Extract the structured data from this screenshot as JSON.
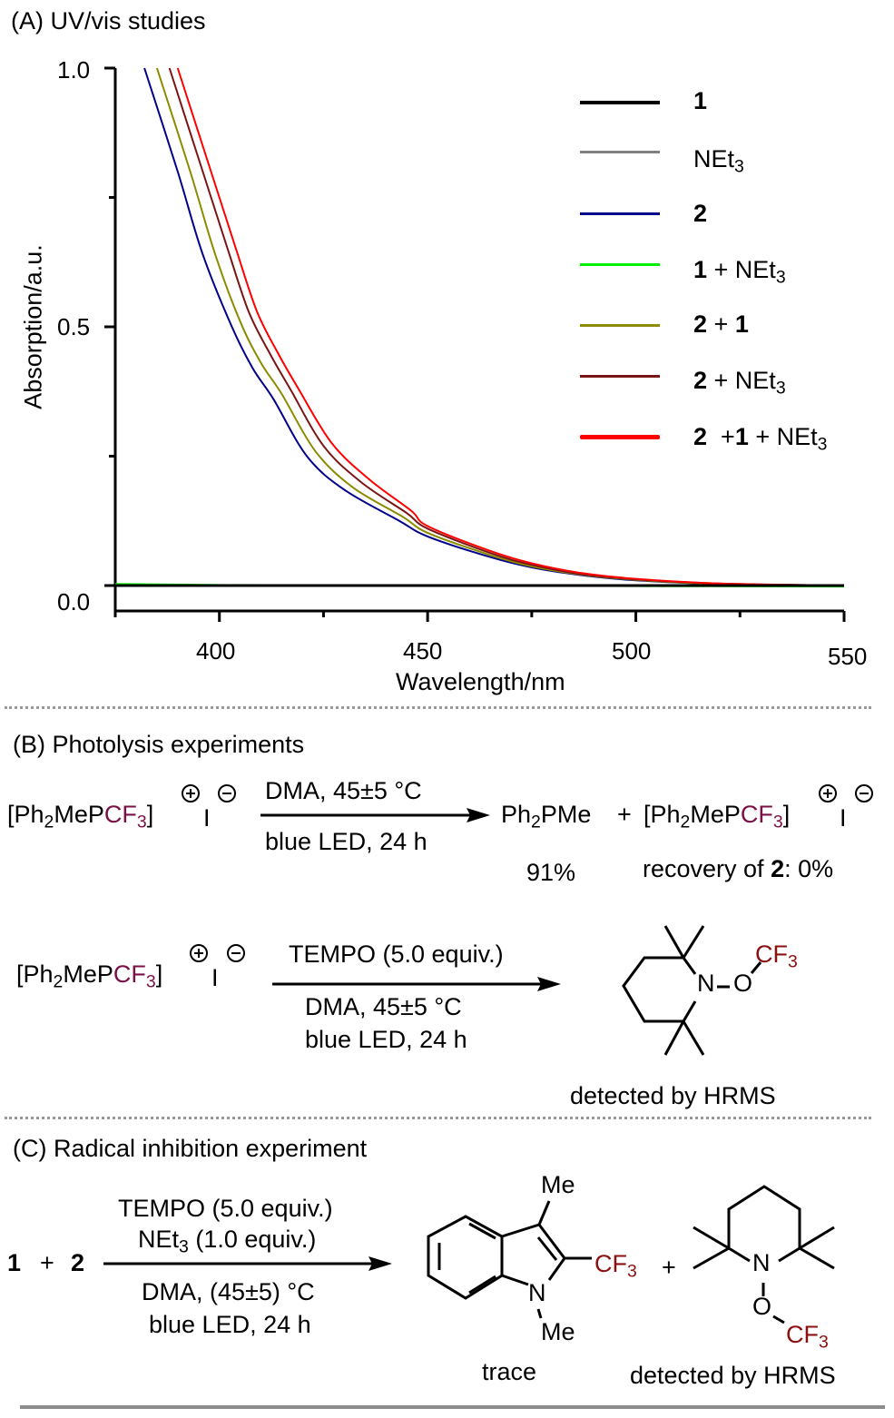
{
  "sectionA": {
    "title": "(A) UV/vis studies"
  },
  "chart_data": {
    "type": "line",
    "title": "(A) UV/vis studies",
    "xlabel": "Wavelength/nm",
    "ylabel": "Absorption/a.u.",
    "xlim": [
      375,
      550
    ],
    "ylim": [
      0.0,
      1.0
    ],
    "xticks": [
      "400",
      "450",
      "500",
      "550"
    ],
    "yticks": [
      "0.0",
      "0.5",
      "1.0"
    ],
    "legend_position": "top-right",
    "grid": false,
    "series": [
      {
        "name": "1",
        "legend_bold": "1",
        "legend_rest": "",
        "color": "#000000",
        "x": [
          375,
          400,
          450,
          500,
          550
        ],
        "y": [
          0.0,
          0.0,
          0.0,
          0.0,
          0.0
        ]
      },
      {
        "name": "NEt3",
        "legend_bold": "",
        "legend_rest": "NEt3",
        "color": "#808080",
        "x": [
          375,
          400,
          450,
          500,
          550
        ],
        "y": [
          0.0,
          0.0,
          0.0,
          0.0,
          0.0
        ]
      },
      {
        "name": "2",
        "legend_bold": "2",
        "legend_rest": "",
        "color": "#00008b",
        "x": [
          382,
          390,
          396,
          403,
          408,
          413,
          421,
          430,
          443,
          450,
          465,
          475,
          487,
          500,
          520,
          550
        ],
        "y": [
          1.0,
          0.8,
          0.64,
          0.5,
          0.42,
          0.36,
          0.25,
          0.185,
          0.126,
          0.095,
          0.055,
          0.035,
          0.02,
          0.01,
          0.003,
          0.0
        ]
      },
      {
        "name": "1 + NEt3",
        "legend_bold": "1",
        "legend_rest": " + NEt3",
        "color": "#00ee00",
        "x": [
          375,
          400,
          450,
          500,
          550
        ],
        "y": [
          0.003,
          0.001,
          0.0,
          -0.001,
          -0.002
        ]
      },
      {
        "name": "2 + 1",
        "legend_bold": "2",
        "legend_rest": " + 1",
        "color": "#8b8b00",
        "x": [
          385,
          393,
          399,
          405,
          410,
          415,
          423,
          432,
          444,
          450,
          465,
          475,
          487,
          500,
          520,
          550
        ],
        "y": [
          1.0,
          0.8,
          0.64,
          0.51,
          0.43,
          0.37,
          0.26,
          0.19,
          0.133,
          0.102,
          0.059,
          0.037,
          0.021,
          0.011,
          0.003,
          0.0
        ]
      },
      {
        "name": "2 + NEt3",
        "legend_bold": "2",
        "legend_rest": " + NEt3",
        "color": "#7b1414",
        "x": [
          388,
          396,
          402,
          407,
          412,
          417,
          425,
          434,
          445,
          450,
          465,
          475,
          487,
          500,
          520,
          550
        ],
        "y": [
          1.0,
          0.8,
          0.65,
          0.53,
          0.45,
          0.38,
          0.27,
          0.2,
          0.14,
          0.11,
          0.063,
          0.04,
          0.022,
          0.012,
          0.004,
          0.0
        ]
      },
      {
        "name": "2 +1 + NEt3",
        "legend_bold": "2",
        "legend_mid": "  +",
        "legend_bold2": "1",
        "legend_rest": " + NEt3",
        "color": "#ff0000",
        "x": [
          390,
          398,
          404,
          409,
          414,
          419,
          427,
          436,
          446,
          450,
          465,
          475,
          487,
          500,
          520,
          550
        ],
        "y": [
          1.0,
          0.8,
          0.65,
          0.53,
          0.45,
          0.38,
          0.275,
          0.205,
          0.145,
          0.115,
          0.067,
          0.043,
          0.024,
          0.013,
          0.004,
          0.0
        ]
      }
    ]
  },
  "legend": {
    "items": [
      {
        "bold": "1",
        "text": "",
        "sub": ""
      },
      {
        "bold": "",
        "text": "NEt",
        "sub": "3"
      },
      {
        "bold": "2",
        "text": "",
        "sub": ""
      },
      {
        "bold": "1",
        "text": " + NEt",
        "sub": "3"
      },
      {
        "bold": "2",
        "text": " + ",
        "bold2": "1",
        "sub": ""
      },
      {
        "bold": "2",
        "text": " + NEt",
        "sub": "3"
      },
      {
        "bold": "2",
        "text": "  +",
        "bold2": "1",
        "text2": " + NEt",
        "sub": "3"
      }
    ]
  },
  "sectionB": {
    "title": "(B) Photolysis experiments",
    "salt": {
      "open": "[Ph",
      "sub2": "2",
      "mid": "MeP",
      "cf": "CF",
      "sub3": "3",
      "close": "]",
      "anion": "I"
    },
    "rxn1": {
      "above": "DMA, 45±5 °C",
      "below": "blue LED, 24 h",
      "product1": {
        "a": "Ph",
        "sub": "2",
        "b": "PMe"
      },
      "plus": "+",
      "yield1": "91%",
      "recovery_pre": "recovery of ",
      "recovery_bold": "2",
      "recovery_post": ": 0%"
    },
    "rxn2": {
      "above": "TEMPO (5.0 equiv.)",
      "below1": "DMA, 45±5 °C",
      "below2": "blue LED, 24 h",
      "atom_N": "N",
      "atom_O": "O",
      "cf3": {
        "a": "CF",
        "sub": "3"
      },
      "note": "detected by HRMS"
    }
  },
  "sectionC": {
    "title": "(C) Radical inhibition experiment",
    "reactant1": "1",
    "plus": "+",
    "reactant2": "2",
    "above1": "TEMPO (5.0 equiv.)",
    "above2_a": "NEt",
    "above2_sub": "3",
    "above2_b": " (1.0 equiv.)",
    "below1": "DMA, (45±5) °C",
    "below2": "blue LED, 24 h",
    "indole": {
      "me_top": "Me",
      "me_bottom": "Me",
      "atom_N": "N",
      "cf3": "CF",
      "cf3_sub": "3",
      "note": "trace"
    },
    "plus2": "+",
    "tempo": {
      "atom_N": "N",
      "atom_O": "O",
      "cf3": "CF",
      "cf3_sub": "3",
      "note": "detected by HRMS"
    }
  }
}
